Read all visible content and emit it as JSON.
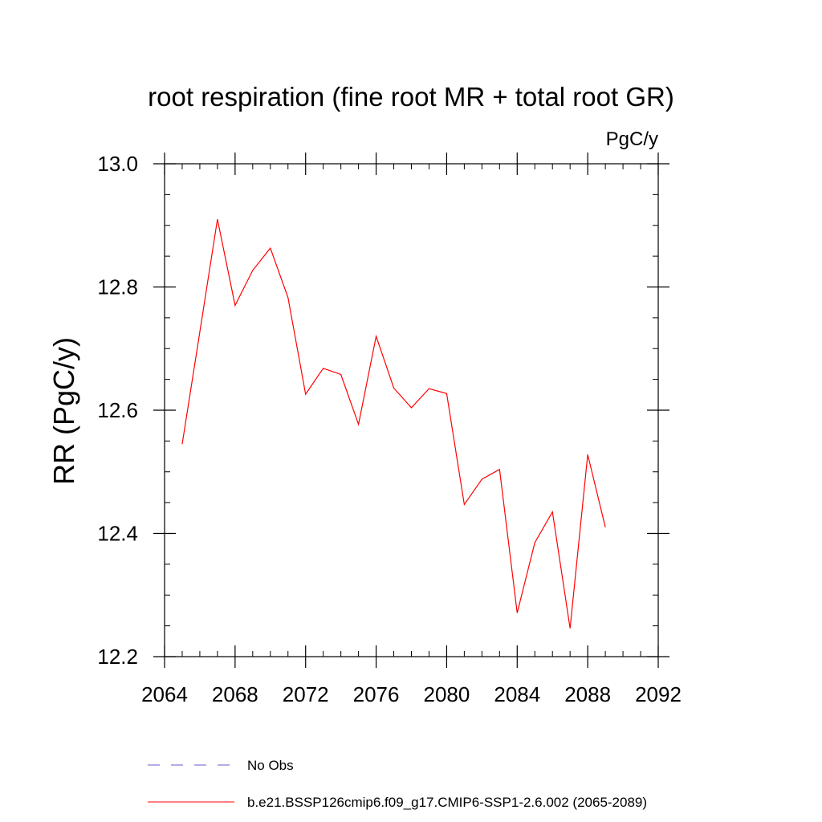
{
  "chart_data": {
    "type": "line",
    "title": "root respiration (fine root MR + total root GR)",
    "units_label": "PgC/y",
    "ylabel": "RR  (PgC/y)",
    "xlabel": "",
    "xlim": [
      2064,
      2092
    ],
    "ylim": [
      12.2,
      13.0
    ],
    "xticks": [
      2064,
      2068,
      2072,
      2076,
      2080,
      2084,
      2088,
      2092
    ],
    "xtick_labels": [
      "2064",
      "2068",
      "2072",
      "2076",
      "2080",
      "2084",
      "2088",
      "2092"
    ],
    "yticks": [
      12.2,
      12.4,
      12.6,
      12.8,
      13.0
    ],
    "ytick_labels": [
      "12.2",
      "12.4",
      "12.6",
      "12.8",
      "13.0"
    ],
    "grid": false,
    "legend_position": "bottom",
    "series": [
      {
        "name": "b.e21.BSSP126cmip6.f09_g17.CMIP6-SSP1-2.6.002 (2065-2089)",
        "color": "#ff0000",
        "style": "solid",
        "x": [
          2065,
          2066,
          2067,
          2068,
          2069,
          2070,
          2071,
          2072,
          2073,
          2074,
          2075,
          2076,
          2077,
          2078,
          2079,
          2080,
          2081,
          2082,
          2083,
          2084,
          2085,
          2086,
          2087,
          2088,
          2089
        ],
        "y": [
          12.545,
          12.727,
          12.91,
          12.77,
          12.827,
          12.863,
          12.783,
          12.626,
          12.668,
          12.658,
          12.577,
          12.72,
          12.636,
          12.604,
          12.635,
          12.627,
          12.447,
          12.488,
          12.504,
          12.271,
          12.385,
          12.435,
          12.246,
          12.528,
          12.41
        ]
      }
    ],
    "legend": [
      {
        "label": "No Obs",
        "color": "#6a5acd",
        "style": "dashed"
      },
      {
        "label": "b.e21.BSSP126cmip6.f09_g17.CMIP6-SSP1-2.6.002 (2065-2089)",
        "color": "#ff0000",
        "style": "solid"
      }
    ]
  }
}
